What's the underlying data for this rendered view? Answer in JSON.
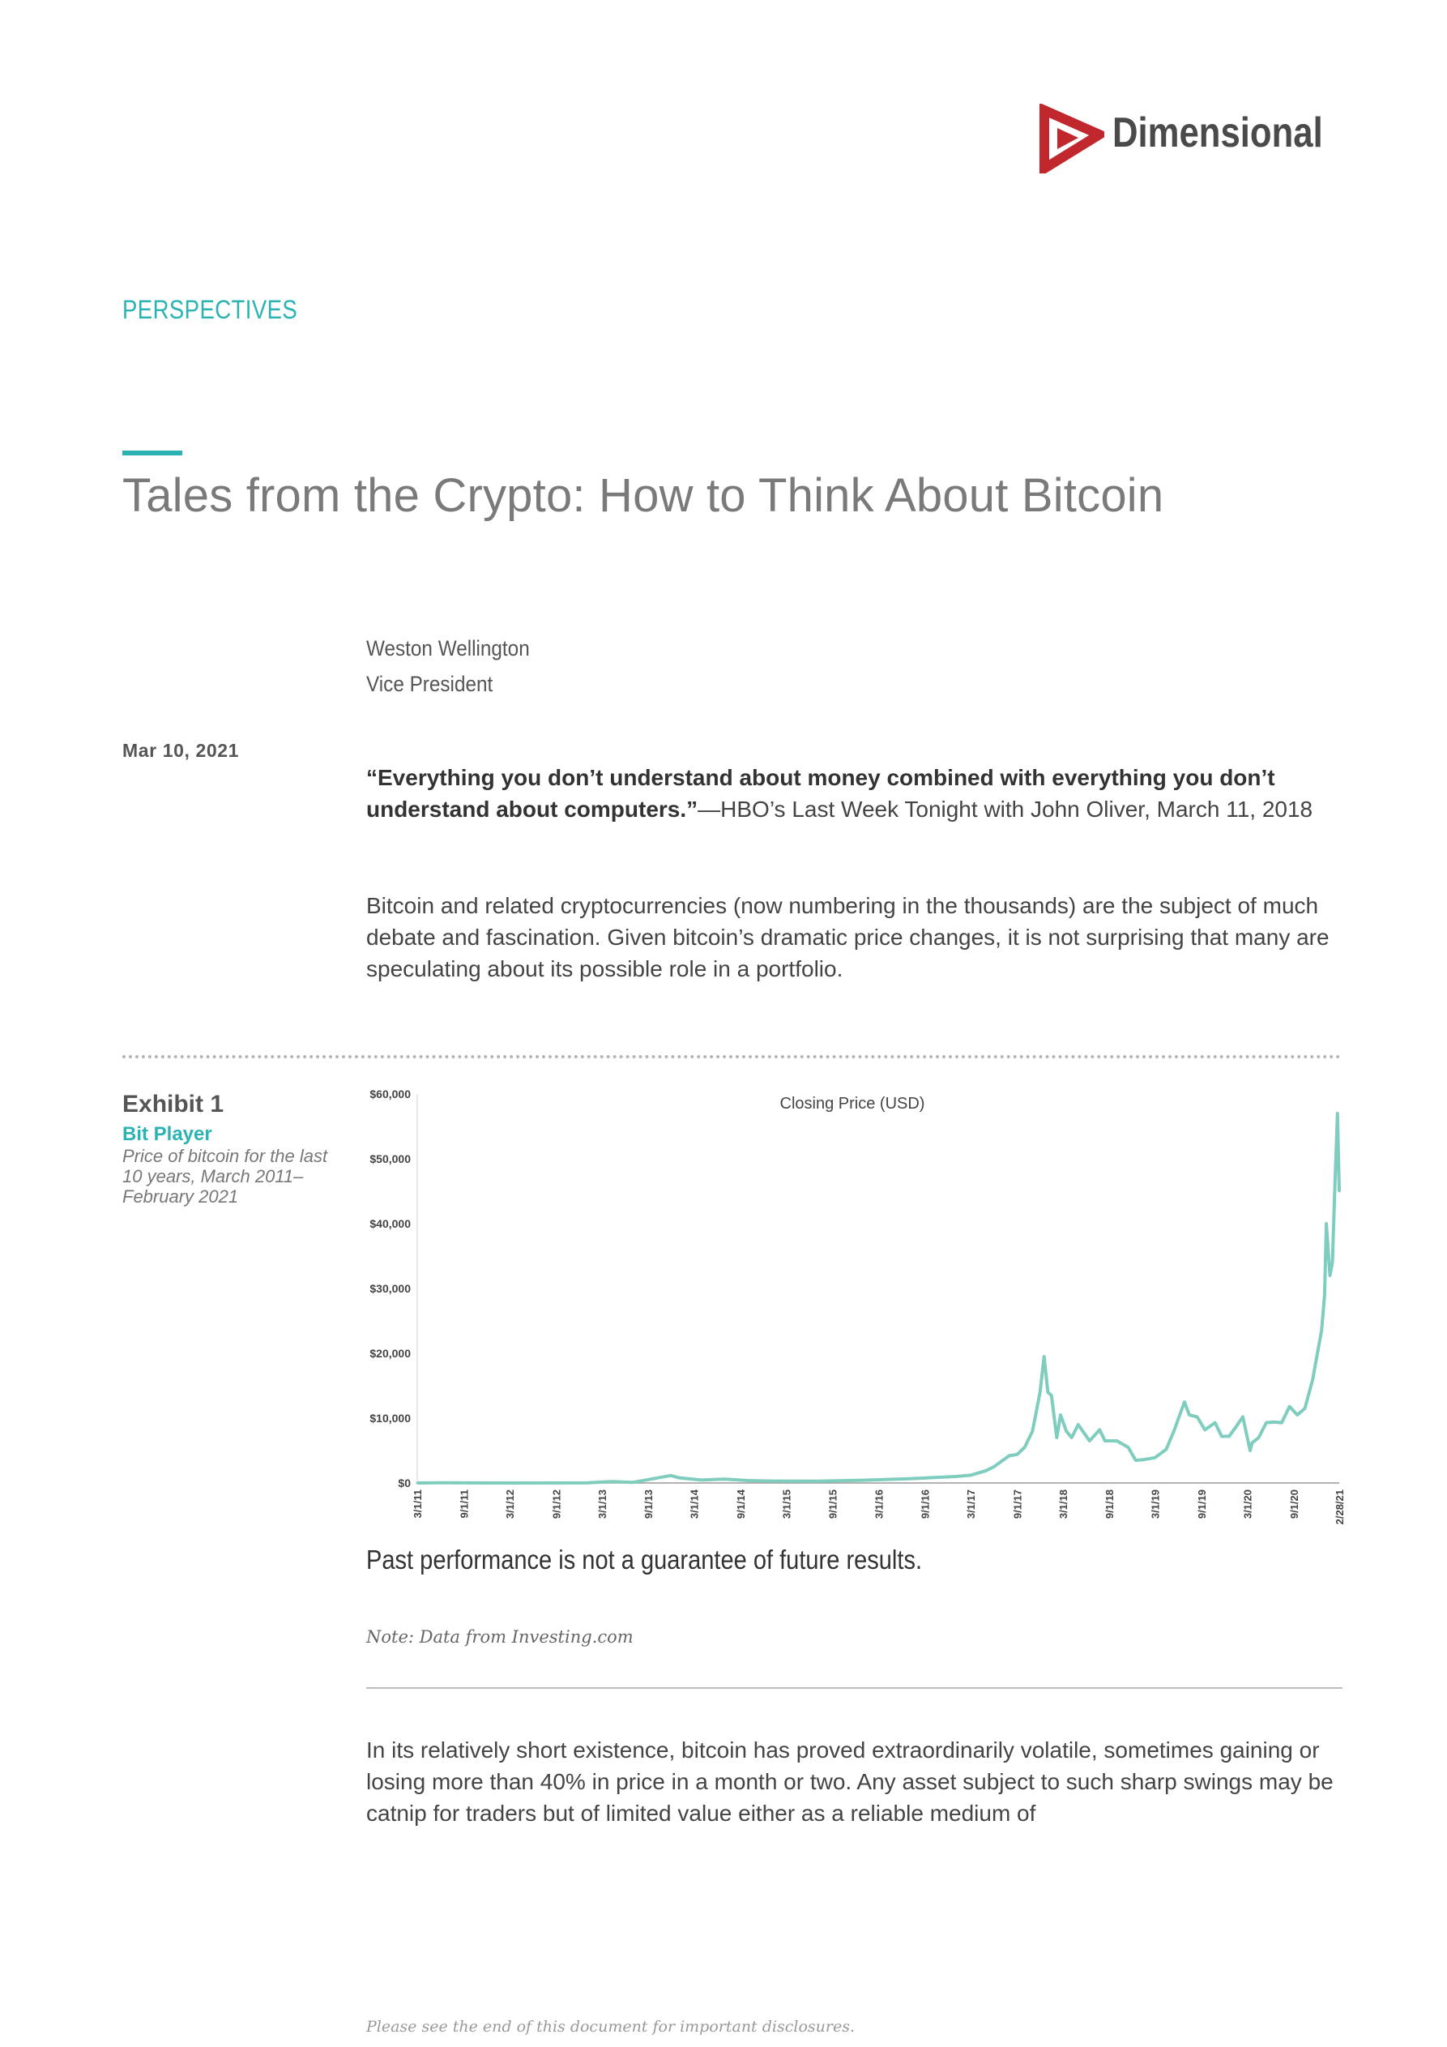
{
  "header": {
    "brand": "Dimensional",
    "section": "PERSPECTIVES"
  },
  "article": {
    "title": "Tales from the Crypto: How to Think About Bitcoin",
    "author_name": "Weston Wellington",
    "author_role": "Vice President",
    "date": "Mar 10, 2021",
    "quote_bold": "“Everything you don’t understand about money combined with everything you don’t understand about computers.”",
    "quote_source": "—HBO’s Last Week Tonight with John Oliver, March 11, 2018",
    "intro": "Bitcoin and related cryptocurrencies (now numbering in the thousands) are the subject of much debate and fascination. Given bitcoin’s dramatic price changes, it is not surprising that many are speculating about its possible role in a portfolio.",
    "body2": "In its relatively short existence, bitcoin has proved extraordinarily volatile, sometimes gaining or losing more than 40% in price in a month or two. Any asset subject to such sharp swings may be catnip for traders but of limited value either as a reliable medium of"
  },
  "exhibit": {
    "number": "Exhibit 1",
    "title": "Bit Player",
    "description": "Price of bitcoin for the last 10 years, March 2011–February 2021",
    "performance_disclaimer": "Past performance is not a guarantee of future results.",
    "note": "Note: Data from Investing.com"
  },
  "footer": {
    "disclosure": "Please see the end of this document for important disclosures."
  },
  "colors": {
    "accent": "#2bb3b3",
    "line": "#7fcdbf",
    "logo_red": "#c0282d"
  },
  "chart_data": {
    "type": "line",
    "title": "Closing Price (USD)",
    "xlabel": "",
    "ylabel": "",
    "ylim": [
      0,
      60000
    ],
    "yticks": [
      "$0",
      "$10,000",
      "$20,000",
      "$30,000",
      "$40,000",
      "$50,000",
      "$60,000"
    ],
    "xticks": [
      "3/1/11",
      "9/1/11",
      "3/1/12",
      "9/1/12",
      "3/1/13",
      "9/1/13",
      "3/1/14",
      "9/1/14",
      "3/1/15",
      "9/1/15",
      "3/1/16",
      "9/1/16",
      "3/1/17",
      "9/1/17",
      "3/1/18",
      "9/1/18",
      "3/1/19",
      "9/1/19",
      "3/1/20",
      "9/1/20",
      "2/28/21"
    ],
    "series": [
      {
        "name": "",
        "x": [
          "2011-03-01",
          "2011-06-08",
          "2012-01-01",
          "2013-01-01",
          "2013-04-10",
          "2013-07-01",
          "2013-11-29",
          "2014-01-01",
          "2014-04-01",
          "2014-07-01",
          "2014-10-01",
          "2015-01-01",
          "2015-07-01",
          "2016-01-01",
          "2016-07-01",
          "2017-01-01",
          "2017-03-01",
          "2017-05-01",
          "2017-06-01",
          "2017-08-01",
          "2017-09-01",
          "2017-10-01",
          "2017-11-01",
          "2017-12-01",
          "2017-12-17",
          "2018-01-01",
          "2018-01-15",
          "2018-02-05",
          "2018-02-20",
          "2018-03-15",
          "2018-04-05",
          "2018-05-01",
          "2018-06-15",
          "2018-07-25",
          "2018-08-15",
          "2018-10-01",
          "2018-11-15",
          "2018-12-15",
          "2019-01-15",
          "2019-03-01",
          "2019-04-15",
          "2019-05-15",
          "2019-06-26",
          "2019-07-15",
          "2019-08-15",
          "2019-09-15",
          "2019-10-25",
          "2019-11-20",
          "2019-12-20",
          "2020-01-15",
          "2020-02-12",
          "2020-03-12",
          "2020-03-20",
          "2020-04-15",
          "2020-05-15",
          "2020-06-15",
          "2020-07-15",
          "2020-08-15",
          "2020-09-15",
          "2020-10-15",
          "2020-11-15",
          "2020-12-01",
          "2020-12-20",
          "2021-01-01",
          "2021-01-08",
          "2021-01-22",
          "2021-02-01",
          "2021-02-10",
          "2021-02-21",
          "2021-02-28"
        ],
        "y": [
          0.9,
          30,
          5,
          13,
          230,
          90,
          1150,
          800,
          450,
          600,
          380,
          300,
          270,
          430,
          650,
          1000,
          1200,
          1900,
          2500,
          4200,
          4400,
          5500,
          8000,
          14000,
          19500,
          14000,
          13500,
          7000,
          10500,
          8000,
          7000,
          9000,
          6500,
          8200,
          6500,
          6500,
          5500,
          3500,
          3600,
          3900,
          5200,
          8000,
          12500,
          10500,
          10200,
          8200,
          9300,
          7200,
          7200,
          8600,
          10200,
          5000,
          6200,
          7000,
          9300,
          9400,
          9300,
          11800,
          10500,
          11500,
          16000,
          19500,
          23500,
          29000,
          40000,
          32000,
          34000,
          45000,
          57000,
          45000
        ]
      }
    ]
  }
}
